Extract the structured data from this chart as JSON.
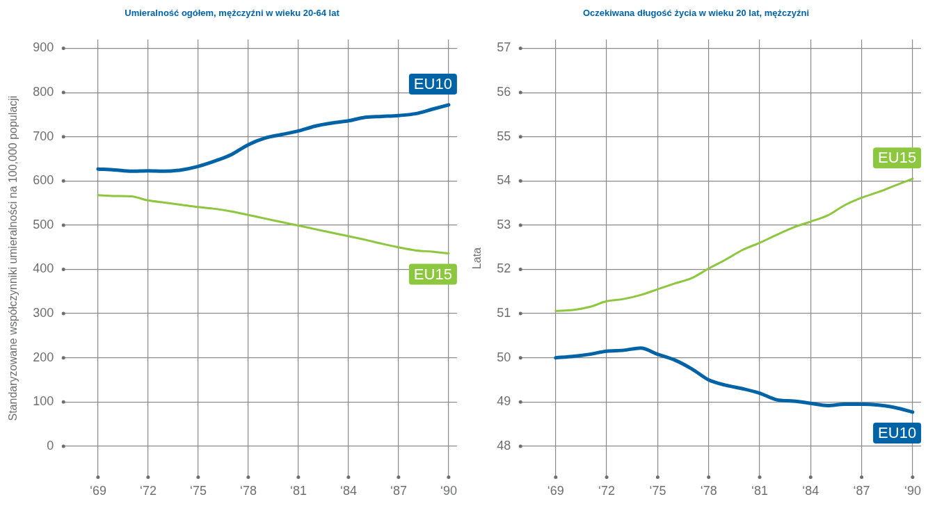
{
  "chart_data": [
    {
      "type": "line",
      "title": "Umieralność ogółem, mężczyźni w wieku 20-64 lat",
      "ylabel": "Standaryzowane współczynniki umieralności na 100,000 populacji",
      "categories": [
        "‘69",
        null,
        null,
        "‘72",
        null,
        null,
        "‘75",
        null,
        null,
        "‘78",
        null,
        null,
        "‘81",
        null,
        null,
        "‘84",
        null,
        null,
        "‘87",
        null,
        null,
        "‘90"
      ],
      "series": [
        {
          "name": "EU10",
          "color": "#0063a6",
          "values": [
            627,
            625,
            622,
            623,
            622,
            625,
            633,
            645,
            660,
            682,
            697,
            705,
            713,
            724,
            731,
            736,
            744,
            746,
            748,
            752,
            762,
            772
          ]
        },
        {
          "name": "EU15",
          "color": "#8dc63f",
          "values": [
            568,
            566,
            565,
            556,
            551,
            546,
            541,
            537,
            531,
            523,
            515,
            507,
            499,
            491,
            483,
            475,
            467,
            458,
            450,
            443,
            440,
            436
          ]
        }
      ],
      "ylim": [
        -70,
        920
      ],
      "yticks": [
        0,
        100,
        200,
        300,
        400,
        500,
        600,
        700,
        800,
        900
      ],
      "grid": true,
      "legend": false,
      "marker": "none",
      "line_style": "solid"
    },
    {
      "type": "line",
      "title": "Oczekiwana długość życia w wieku 20 lat, mężczyźni",
      "ylabel": "Lata",
      "categories": [
        "‘69",
        null,
        null,
        "‘72",
        null,
        null,
        "‘75",
        null,
        null,
        "‘78",
        null,
        null,
        "‘81",
        null,
        null,
        "‘84",
        null,
        null,
        "‘87",
        null,
        null,
        "‘90"
      ],
      "series": [
        {
          "name": "EU15",
          "color": "#8dc63f",
          "values": [
            51.06,
            51.08,
            51.15,
            51.28,
            51.33,
            51.42,
            51.55,
            51.68,
            51.8,
            52.02,
            52.22,
            52.44,
            52.6,
            52.78,
            52.95,
            53.08,
            53.22,
            53.45,
            53.62,
            53.75,
            53.9,
            54.05
          ]
        },
        {
          "name": "EU10",
          "color": "#0063a6",
          "values": [
            50.0,
            50.03,
            50.08,
            50.15,
            50.17,
            50.22,
            50.08,
            49.95,
            49.75,
            49.5,
            49.38,
            49.3,
            49.2,
            49.05,
            49.02,
            48.97,
            48.92,
            48.95,
            48.95,
            48.93,
            48.87,
            48.77
          ]
        }
      ],
      "ylim": [
        47.3,
        57.2
      ],
      "yticks": [
        48,
        49,
        50,
        51,
        52,
        53,
        54,
        55,
        56,
        57
      ],
      "grid": true,
      "legend": false,
      "marker": "none",
      "line_style": "solid"
    }
  ]
}
